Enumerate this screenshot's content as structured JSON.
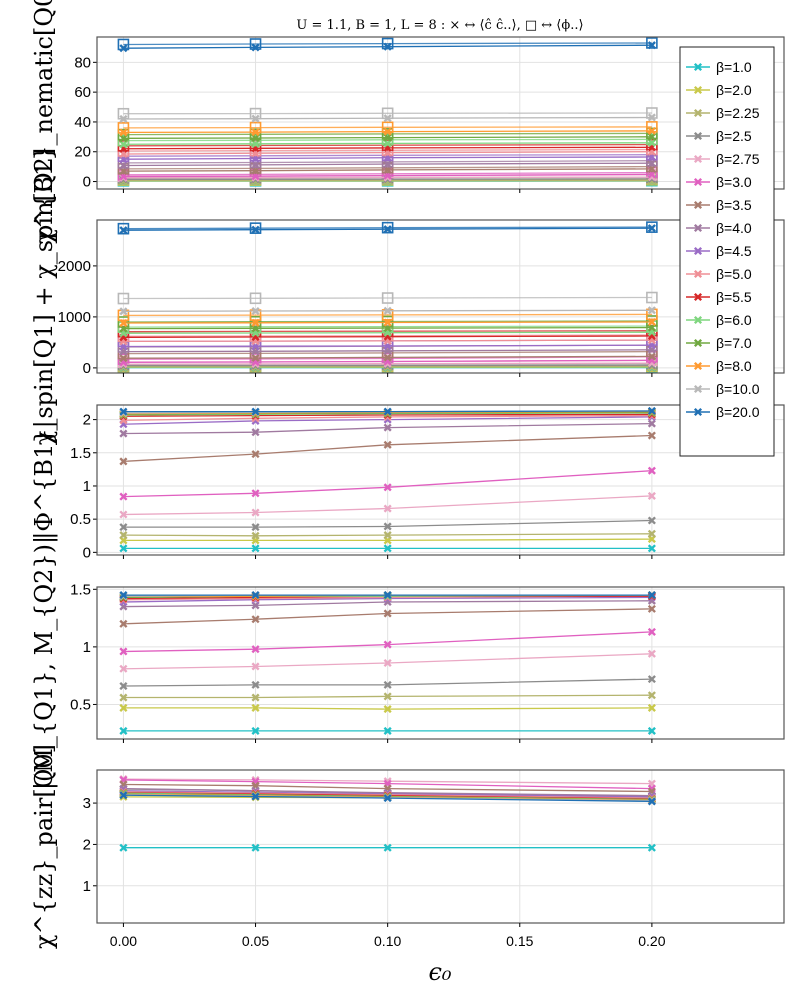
{
  "figure": {
    "title": "U = 1.1, B = 1, L = 8 :    × ↔ ⟨ĉ ĉ..⟩,      □ ↔ ⟨ϕ..⟩",
    "xlabel": "ϵ₀"
  },
  "chart_data": {
    "type": "line",
    "x": [
      0.0,
      0.05,
      0.1,
      0.2
    ],
    "x_ticks": [
      "0.00",
      "0.05",
      "0.10",
      "0.15",
      "0.20"
    ],
    "xlim": [
      -0.01,
      0.25
    ],
    "grid": true,
    "legend_position": "top-right",
    "legend": [
      {
        "label": "β=1.0",
        "color": "#22c0c6"
      },
      {
        "label": "β=2.0",
        "color": "#c9c94a"
      },
      {
        "label": "β=2.25",
        "color": "#b4b46e"
      },
      {
        "label": "β=2.5",
        "color": "#8c8c8c"
      },
      {
        "label": "β=2.75",
        "color": "#eaa8c4"
      },
      {
        "label": "β=3.0",
        "color": "#e060c0"
      },
      {
        "label": "β=3.5",
        "color": "#a87c6e"
      },
      {
        "label": "β=4.0",
        "color": "#a07aa0"
      },
      {
        "label": "β=4.5",
        "color": "#9a6cc6"
      },
      {
        "label": "β=5.0",
        "color": "#ef8f96"
      },
      {
        "label": "β=5.5",
        "color": "#d62828"
      },
      {
        "label": "β=6.0",
        "color": "#7fd67f"
      },
      {
        "label": "β=7.0",
        "color": "#70a840"
      },
      {
        "label": "β=8.0",
        "color": "#ff9a30"
      },
      {
        "label": "β=10.0",
        "color": "#b8b8b8"
      },
      {
        "label": "β=20.0",
        "color": "#2070b4"
      }
    ],
    "panels": [
      {
        "ylabel": "χ^{B1}_nematic[Q0]",
        "ylim": [
          -5,
          97
        ],
        "yticks": [
          0,
          20,
          40,
          60,
          80
        ],
        "series_cross": [
          [
            0.3,
            0.3,
            0.3,
            0.4
          ],
          [
            0.5,
            0.5,
            0.5,
            0.6
          ],
          [
            0.8,
            0.8,
            0.8,
            0.9
          ],
          [
            1.5,
            1.5,
            1.6,
            1.8
          ],
          [
            2.5,
            2.6,
            2.7,
            3.0
          ],
          [
            3.4,
            3.6,
            4.0,
            4.8
          ],
          [
            7,
            7.3,
            7.8,
            8.5
          ],
          [
            10.8,
            11.2,
            11.7,
            12.3
          ],
          [
            15,
            15.5,
            16,
            16.5
          ],
          [
            18.5,
            19,
            19.4,
            20
          ],
          [
            22,
            22.3,
            22.6,
            23
          ],
          [
            25,
            25.3,
            25.6,
            26
          ],
          [
            29,
            29.2,
            29.5,
            30
          ],
          [
            33,
            33.2,
            33.5,
            34
          ],
          [
            42,
            42.2,
            42.5,
            43
          ],
          [
            89.5,
            90,
            90.5,
            91.5
          ]
        ],
        "series_square": [
          [
            0.5,
            0.5,
            0.5,
            0.6
          ],
          [
            1,
            1,
            1.1,
            1.2
          ],
          [
            1.5,
            1.5,
            1.6,
            1.8
          ],
          [
            2.5,
            2.6,
            2.7,
            2.9
          ],
          [
            3.5,
            3.7,
            4,
            4.5
          ],
          [
            4.5,
            4.8,
            5.2,
            6
          ],
          [
            8.5,
            8.8,
            9.2,
            10
          ],
          [
            12.5,
            12.8,
            13.2,
            14
          ],
          [
            17,
            17.3,
            17.6,
            18
          ],
          [
            20.5,
            20.8,
            21,
            21.5
          ],
          [
            24,
            24.2,
            24.4,
            24.8
          ],
          [
            27.5,
            27.7,
            28,
            28.3
          ],
          [
            31.5,
            31.7,
            32,
            32.3
          ],
          [
            36,
            36.2,
            36.4,
            36.7
          ],
          [
            45.5,
            45.6,
            45.8,
            46
          ],
          [
            92,
            92.3,
            92.6,
            93
          ]
        ]
      },
      {
        "ylabel": "χ_spin[Q1] + χ_spin[Q2]",
        "ylim": [
          -100,
          2900
        ],
        "yticks": [
          0,
          1000,
          2000
        ],
        "series_cross": [
          [
            5,
            5,
            5,
            6
          ],
          [
            15,
            15,
            16,
            18
          ],
          [
            25,
            25,
            27,
            30
          ],
          [
            45,
            46,
            48,
            52
          ],
          [
            75,
            78,
            82,
            95
          ],
          [
            110,
            115,
            125,
            150
          ],
          [
            190,
            195,
            205,
            225
          ],
          [
            320,
            325,
            335,
            355
          ],
          [
            420,
            425,
            430,
            445
          ],
          [
            520,
            525,
            530,
            545
          ],
          [
            600,
            605,
            612,
            625
          ],
          [
            680,
            685,
            690,
            700
          ],
          [
            770,
            775,
            780,
            790
          ],
          [
            880,
            885,
            890,
            900
          ],
          [
            1110,
            1115,
            1120,
            1130
          ],
          [
            2700,
            2710,
            2720,
            2740
          ]
        ],
        "series_square": [
          [
            8,
            8,
            8,
            9
          ],
          [
            25,
            25,
            27,
            30
          ],
          [
            40,
            41,
            44,
            48
          ],
          [
            70,
            72,
            75,
            82
          ],
          [
            115,
            118,
            125,
            145
          ],
          [
            170,
            175,
            185,
            220
          ],
          [
            280,
            285,
            295,
            320
          ],
          [
            410,
            415,
            425,
            445
          ],
          [
            520,
            525,
            530,
            545
          ],
          [
            620,
            625,
            630,
            645
          ],
          [
            710,
            715,
            720,
            730
          ],
          [
            800,
            805,
            810,
            820
          ],
          [
            900,
            905,
            910,
            920
          ],
          [
            1030,
            1035,
            1040,
            1050
          ],
          [
            1360,
            1365,
            1370,
            1380
          ],
          [
            2730,
            2740,
            2750,
            2760
          ]
        ]
      },
      {
        "ylabel": "|Φ^{B1}|",
        "ylim": [
          -0.04,
          2.22
        ],
        "yticks": [
          0.0,
          0.5,
          1.0,
          1.5,
          2.0
        ],
        "series_cross": [
          [
            0.06,
            0.06,
            0.06,
            0.06
          ],
          [
            0.18,
            0.18,
            0.18,
            0.2
          ],
          [
            0.26,
            0.25,
            0.26,
            0.28
          ],
          [
            0.38,
            0.38,
            0.39,
            0.48
          ],
          [
            0.57,
            0.6,
            0.66,
            0.85
          ],
          [
            0.84,
            0.89,
            0.98,
            1.23
          ],
          [
            1.37,
            1.48,
            1.62,
            1.76
          ],
          [
            1.79,
            1.81,
            1.88,
            1.94
          ],
          [
            1.93,
            1.98,
            2.0,
            2.04
          ],
          [
            1.99,
            2.02,
            2.04,
            2.06
          ],
          [
            2.05,
            2.06,
            2.07,
            2.08
          ],
          [
            2.07,
            2.08,
            2.09,
            2.1
          ],
          [
            2.08,
            2.09,
            2.1,
            2.11
          ],
          [
            2.09,
            2.1,
            2.11,
            2.12
          ],
          [
            2.1,
            2.11,
            2.12,
            2.13
          ],
          [
            2.12,
            2.12,
            2.12,
            2.13
          ]
        ]
      },
      {
        "ylabel": "|(M_{Q1}, M_{Q2})|",
        "ylim": [
          0.2,
          1.52
        ],
        "yticks": [
          0.5,
          1.0,
          1.5
        ],
        "series_cross": [
          [
            0.27,
            0.27,
            0.27,
            0.27
          ],
          [
            0.47,
            0.47,
            0.46,
            0.47
          ],
          [
            0.56,
            0.56,
            0.57,
            0.58
          ],
          [
            0.66,
            0.67,
            0.67,
            0.72
          ],
          [
            0.81,
            0.83,
            0.86,
            0.94
          ],
          [
            0.96,
            0.98,
            1.02,
            1.13
          ],
          [
            1.2,
            1.24,
            1.29,
            1.33
          ],
          [
            1.35,
            1.36,
            1.39,
            1.4
          ],
          [
            1.39,
            1.41,
            1.42,
            1.43
          ],
          [
            1.41,
            1.42,
            1.43,
            1.44
          ],
          [
            1.42,
            1.43,
            1.44,
            1.44
          ],
          [
            1.43,
            1.44,
            1.44,
            1.45
          ],
          [
            1.43,
            1.44,
            1.45,
            1.45
          ],
          [
            1.44,
            1.44,
            1.45,
            1.45
          ],
          [
            1.44,
            1.45,
            1.45,
            1.45
          ],
          [
            1.45,
            1.45,
            1.45,
            1.45
          ]
        ]
      },
      {
        "ylabel": "χ^{zz}_pair[Q0]",
        "ylim": [
          0.1,
          3.8
        ],
        "yticks": [
          1,
          2,
          3
        ],
        "series_cross": [
          [
            1.92,
            1.92,
            1.92,
            1.92
          ],
          [
            3.15,
            3.14,
            3.13,
            3.1
          ],
          [
            3.22,
            3.2,
            3.18,
            3.14
          ],
          [
            3.34,
            3.3,
            3.24,
            3.17
          ],
          [
            3.58,
            3.56,
            3.53,
            3.47
          ],
          [
            3.56,
            3.52,
            3.47,
            3.35
          ],
          [
            3.45,
            3.42,
            3.35,
            3.28
          ],
          [
            3.35,
            3.3,
            3.25,
            3.18
          ],
          [
            3.3,
            3.26,
            3.22,
            3.15
          ],
          [
            3.27,
            3.24,
            3.2,
            3.12
          ],
          [
            3.25,
            3.22,
            3.18,
            3.1
          ],
          [
            3.24,
            3.2,
            3.16,
            3.09
          ],
          [
            3.22,
            3.19,
            3.15,
            3.08
          ],
          [
            3.21,
            3.18,
            3.14,
            3.07
          ],
          [
            3.2,
            3.17,
            3.13,
            3.06
          ],
          [
            3.19,
            3.16,
            3.12,
            3.04
          ]
        ]
      }
    ]
  }
}
